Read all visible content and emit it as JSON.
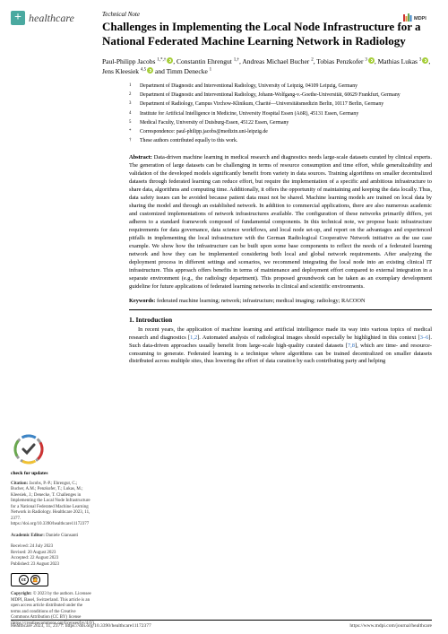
{
  "journal": {
    "name": "healthcare",
    "publisher": "MDPI"
  },
  "article": {
    "type": "Technical Note",
    "title": "Challenges in Implementing the Local Node Infrastructure for a National Federated Machine Learning Network in Radiology",
    "authors_html": "Paul-Philipp Jacobs <sup>1,*,†</sup><span class='orcid'></span>, Constantin Ehrengut <sup>1,†</sup>, Andreas Michael Bucher <sup>2</sup>, Tobias Penzkofer <sup>3</sup><span class='orcid'></span>, Mathias Lukas <sup>3</sup><span class='orcid'></span>, Jens Kleesiek <sup>4,5</sup><span class='orcid'></span> and Timm Denecke <sup>1</sup>"
  },
  "affiliations": [
    {
      "n": "1",
      "text": "Department of Diagnostic and Interventional Radiology, University of Leipzig, 04109 Leipzig, Germany"
    },
    {
      "n": "2",
      "text": "Department of Diagnostic and Interventional Radiology, Johann-Wolfgang-v.-Goethe-Universität, 60629 Frankfurt, Germany"
    },
    {
      "n": "3",
      "text": "Department of Radiology, Campus Virchow-Klinikum, Charité—Universitätsmedizin Berlin, 10117 Berlin, Germany"
    },
    {
      "n": "4",
      "text": "Institute for Artificial Intelligence in Medicine, University Hospital Essen (AöR), 45131 Essen, Germany"
    },
    {
      "n": "5",
      "text": "Medical Faculty, University of Duisburg-Essen, 45122 Essen, Germany"
    },
    {
      "n": "*",
      "text": "Correspondence: paul-philipp.jacobs@medizin.uni-leipzig.de"
    },
    {
      "n": "†",
      "text": "These authors contributed equally to this work."
    }
  ],
  "abstract": {
    "label": "Abstract:",
    "text": "Data-driven machine learning in medical research and diagnostics needs large-scale datasets curated by clinical experts. The generation of large datasets can be challenging in terms of resource consumption and time effort, while generalizability and validation of the developed models significantly benefit from variety in data sources. Training algorithms on smaller decentralized datasets through federated learning can reduce effort, but require the implementation of a specific and ambitious infrastructure to share data, algorithms and computing time. Additionally, it offers the opportunity of maintaining and keeping the data locally. Thus, data safety issues can be avoided because patient data must not be shared. Machine learning models are trained on local data by sharing the model and through an established network. In addition to commercial applications, there are also numerous academic and customized implementations of network infrastructures available. The configuration of these networks primarily differs, yet adheres to a standard framework composed of fundamental components. In this technical note, we propose basic infrastructure requirements for data governance, data science workflows, and local node set-up, and report on the advantages and experienced pitfalls in implementing the local infrastructure with the German Radiological Cooperative Network initiative as the use case example. We show how the infrastructure can be built upon some base components to reflect the needs of a federated learning network and how they can be implemented considering both local and global network requirements. After analyzing the deployment process in different settings and scenarios, we recommend integrating the local node into an existing clinical IT infrastructure. This approach offers benefits in terms of maintenance and deployment effort compared to external integration in a separate environment (e.g., the radiology department). This proposed groundwork can be taken as an exemplary development guideline for future applications of federated learning networks in clinical and scientific environments."
  },
  "keywords": {
    "label": "Keywords:",
    "text": "federated machine learning; network; infrastructure; medical imaging; radiology; RACOON"
  },
  "section1": {
    "heading": "1. Introduction",
    "body": "In recent years, the application of machine learning and artificial intelligence made its way into various topics of medical research and diagnostics [1,2]. Automated analysis of radiological images should especially be highlighted in this context [3–6]. Such data-driven approaches usually benefit from large-scale high-quality curated datasets [7,8], which are time- and resource-consuming to generate. Federated learning is a technique where algorithms can be trained decentralized on smaller datasets distributed across multiple sites, thus lowering the effort of data curation by each contributing party and helping"
  },
  "sidebar": {
    "check_label": "check for updates",
    "citation_label": "Citation:",
    "citation_text": "Jacobs, P.-P.; Ehrengut, C.; Bucher, A.M.; Penzkofer, T.; Lukas, M.; Kleesiek, J.; Denecke, T. Challenges in Implementing the Local Node Infrastructure for a National Federated Machine Learning Network in Radiology. Healthcare 2023, 11, 2377. https://doi.org/10.3390/healthcare11172377",
    "editor_label": "Academic Editor:",
    "editor": "Daniele Giansanti",
    "received_label": "Received:",
    "received": "24 July 2023",
    "revised_label": "Revised:",
    "revised": "20 August 2023",
    "accepted_label": "Accepted:",
    "accepted": "22 August 2023",
    "published_label": "Published:",
    "published": "23 August 2023",
    "copyright_label": "Copyright:",
    "copyright": "© 2023 by the authors. Licensee MDPI, Basel, Switzerland. This article is an open access article distributed under the terms and conditions of the Creative Commons Attribution (CC BY) license (https://creativecommons.org/licenses/by/4.0/)."
  },
  "footer": {
    "left": "Healthcare 2023, 11, 2377. https://doi.org/10.3390/healthcare11172377",
    "right": "https://www.mdpi.com/journal/healthcare"
  },
  "colors": {
    "journal_accent": "#4aa9a0",
    "orcid": "#a6ce39",
    "ref_link": "#3070c0",
    "mdpi_red": "#cc3333",
    "mdpi_orange": "#e69138",
    "mdpi_green": "#6aa84f",
    "mdpi_blue": "#3d85c6"
  }
}
